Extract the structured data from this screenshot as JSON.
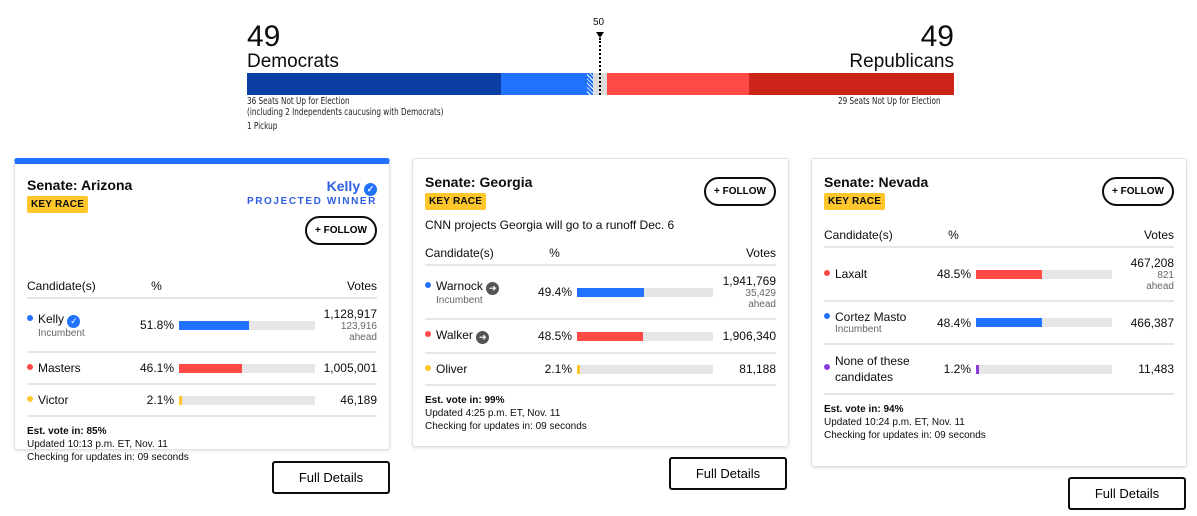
{
  "balance": {
    "dem": {
      "seats": "49",
      "label": "Democrats",
      "note1": "36 Seats Not Up for Election",
      "note2": "(including 2 Independents caucusing with Democrats)",
      "pickup": "1 Pickup"
    },
    "rep": {
      "seats": "49",
      "label": "Republicans",
      "note1": "29 Seats Not Up for Election"
    },
    "majority_label": "50",
    "segments_seats": {
      "dem_not_up": 36,
      "dem_won": 12,
      "dem_pickup": 1,
      "undecided": 2,
      "rep_won": 20,
      "rep_not_up": 29
    },
    "colors": {
      "dem_dark": "#0a3ea3",
      "dem_light": "#2172ff",
      "rep_light": "#ff4a46",
      "rep_dark": "#cc2418",
      "undecided": "#dcdcdc"
    }
  },
  "headers": {
    "candidate": "Candidate(s)",
    "pct": "%",
    "votes": "Votes"
  },
  "follow_label": "+ FOLLOW",
  "key_race_label": "KEY RACE",
  "full_details_label": "Full Details",
  "races": [
    {
      "state": "Senate: Arizona",
      "winner": {
        "name": "Kelly",
        "label": "PROJECTED WINNER"
      },
      "candidates": [
        {
          "name": "Kelly",
          "status": "Incumbent",
          "pct": "51.8%",
          "value": 51.8,
          "votes": "1,128,917",
          "ahead": "123,916 ahead",
          "color": "#2172ff",
          "icon": "check-icon"
        },
        {
          "name": "Masters",
          "pct": "46.1%",
          "value": 46.1,
          "votes": "1,005,001",
          "color": "#ff4a46"
        },
        {
          "name": "Victor",
          "pct": "2.1%",
          "value": 2.1,
          "votes": "46,189",
          "color": "#ffc72c"
        }
      ],
      "est": "Est. vote in: 85%",
      "updated": "Updated 10:13 p.m. ET, Nov. 11",
      "checking": "Checking for updates in: 09 seconds"
    },
    {
      "state": "Senate: Georgia",
      "note": "CNN projects Georgia will go to a runoff Dec. 6",
      "candidates": [
        {
          "name": "Warnock",
          "status": "Incumbent",
          "pct": "49.4%",
          "value": 49.4,
          "votes": "1,941,769",
          "ahead": "35,429 ahead",
          "color": "#2172ff",
          "icon": "runoff-arrow-icon"
        },
        {
          "name": "Walker",
          "pct": "48.5%",
          "value": 48.5,
          "votes": "1,906,340",
          "color": "#ff4a46",
          "icon": "runoff-arrow-icon"
        },
        {
          "name": "Oliver",
          "pct": "2.1%",
          "value": 2.1,
          "votes": "81,188",
          "color": "#ffc72c"
        }
      ],
      "est": "Est. vote in: 99%",
      "updated": "Updated 4:25 p.m. ET, Nov. 11",
      "checking": "Checking for updates in: 09 seconds"
    },
    {
      "state": "Senate: Nevada",
      "candidates": [
        {
          "name": "Laxalt",
          "pct": "48.5%",
          "value": 48.5,
          "votes": "467,208",
          "ahead": "821 ahead",
          "color": "#ff4a46"
        },
        {
          "name": "Cortez Masto",
          "status": "Incumbent",
          "pct": "48.4%",
          "value": 48.4,
          "votes": "466,387",
          "color": "#2172ff"
        },
        {
          "name": "None of these candidates",
          "pct": "1.2%",
          "value": 1.2,
          "votes": "11,483",
          "color": "#8a3ddb"
        }
      ],
      "est": "Est. vote in: 94%",
      "updated": "Updated 10:24 p.m. ET, Nov. 11",
      "checking": "Checking for updates in: 09 seconds"
    }
  ]
}
